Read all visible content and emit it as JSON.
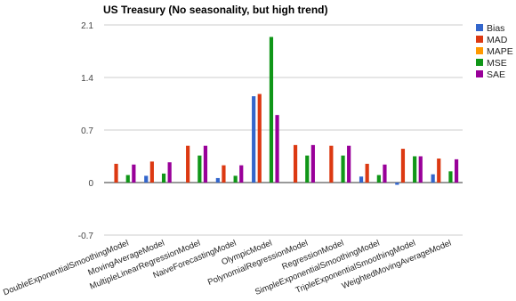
{
  "chart_data": {
    "type": "bar",
    "title": "US Treasury (No seasonality, but high trend)",
    "xlabel": "",
    "ylabel": "",
    "ylim": [
      -0.7,
      2.1
    ],
    "yticks": [
      "2.1",
      "1.4",
      "0.7",
      "0",
      "-0.7"
    ],
    "grid": true,
    "legend_position": "right",
    "categories": [
      "DoubleExponentialSmoothingModel",
      "MovingAverageModel",
      "MultipleLinearRegressionModel",
      "NaiveForecastingModel",
      "OlympicModel",
      "PolynomialRegressionModel",
      "RegressionModel",
      "SimpleExponentialSmoothingModel",
      "TripleExponentialSmoothingModel",
      "WeightedMovingAverageModel"
    ],
    "series": [
      {
        "name": "Bias",
        "color": "#3366cc",
        "values": [
          0,
          0.09,
          0,
          0.06,
          1.15,
          0,
          0,
          0.08,
          -0.03,
          0.11
        ]
      },
      {
        "name": "MAD",
        "color": "#dc3912",
        "values": [
          0.25,
          0.28,
          0.49,
          0.23,
          1.18,
          0.5,
          0.49,
          0.25,
          0.45,
          0.32
        ]
      },
      {
        "name": "MAPE",
        "color": "#ff9900",
        "values": [
          0,
          0,
          0,
          0,
          0,
          0,
          0,
          0,
          0,
          0
        ]
      },
      {
        "name": "MSE",
        "color": "#109618",
        "values": [
          0.1,
          0.12,
          0.36,
          0.09,
          1.94,
          0.36,
          0.36,
          0.1,
          0.35,
          0.15
        ]
      },
      {
        "name": "SAE",
        "color": "#990099",
        "values": [
          0.24,
          0.27,
          0.49,
          0.23,
          0.9,
          0.5,
          0.49,
          0.24,
          0.35,
          0.31
        ]
      }
    ]
  }
}
